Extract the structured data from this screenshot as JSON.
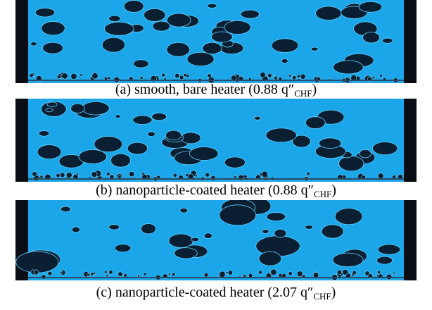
{
  "panels": [
    {
      "caption": "(a) smooth, bare heater (0.88 q″",
      "subscript": "CHF",
      "after": ")"
    },
    {
      "caption": "(b) nanoparticle-coated heater (0.88 q″",
      "subscript": "CHF",
      "after": ")"
    },
    {
      "caption": "(c) nanoparticle-coated heater (2.07 q″",
      "subscript": "CHF",
      "after": ")"
    }
  ]
}
